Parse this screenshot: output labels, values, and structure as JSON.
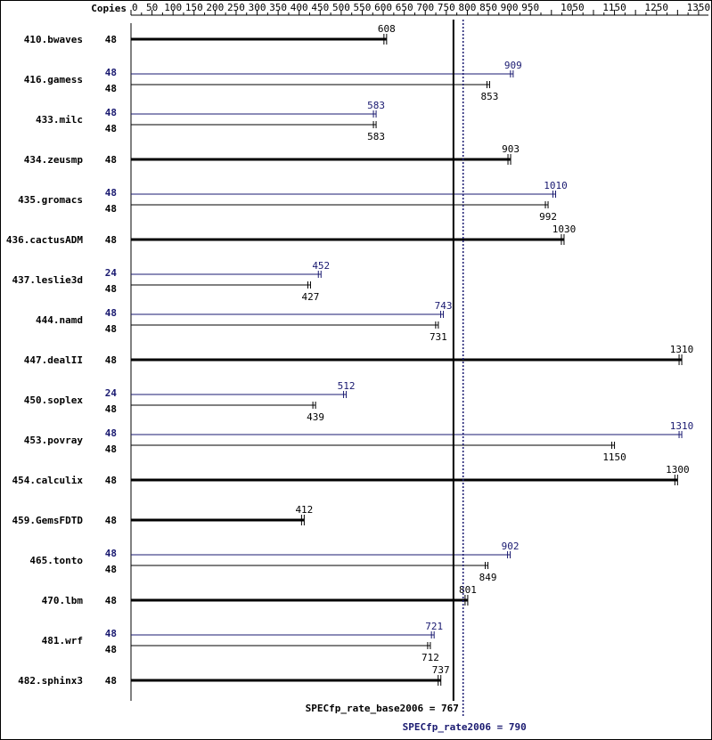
{
  "chart_data": {
    "type": "bar",
    "orientation": "horizontal",
    "copies_header": "Copies",
    "x_ticks": [
      0,
      50,
      100,
      150,
      200,
      250,
      300,
      350,
      400,
      450,
      500,
      550,
      600,
      650,
      700,
      750,
      800,
      850,
      900,
      950,
      1050,
      1150,
      1250,
      1350
    ],
    "xlim": [
      0,
      1350
    ],
    "colors": {
      "base": "#000000",
      "peak": "#191970"
    },
    "benchmarks": [
      {
        "name": "410.bwaves",
        "single": {
          "copies": "48",
          "value": 608,
          "label": "608"
        }
      },
      {
        "name": "416.gamess",
        "peak": {
          "copies": "48",
          "value": 909,
          "label": "909"
        },
        "base": {
          "copies": "48",
          "value": 853,
          "label": "853"
        }
      },
      {
        "name": "433.milc",
        "peak": {
          "copies": "48",
          "value": 583,
          "label": "583"
        },
        "base": {
          "copies": "48",
          "value": 583,
          "label": "583"
        }
      },
      {
        "name": "434.zeusmp",
        "single": {
          "copies": "48",
          "value": 903,
          "label": "903"
        }
      },
      {
        "name": "435.gromacs",
        "peak": {
          "copies": "48",
          "value": 1010,
          "label": "1010"
        },
        "base": {
          "copies": "48",
          "value": 992,
          "label": "992"
        }
      },
      {
        "name": "436.cactusADM",
        "single": {
          "copies": "48",
          "value": 1030,
          "label": "1030"
        }
      },
      {
        "name": "437.leslie3d",
        "peak": {
          "copies": "24",
          "value": 452,
          "label": "452"
        },
        "base": {
          "copies": "48",
          "value": 427,
          "label": "427"
        }
      },
      {
        "name": "444.namd",
        "peak": {
          "copies": "48",
          "value": 743,
          "label": "743"
        },
        "base": {
          "copies": "48",
          "value": 731,
          "label": "731"
        }
      },
      {
        "name": "447.dealII",
        "single": {
          "copies": "48",
          "value": 1310,
          "label": "1310"
        }
      },
      {
        "name": "450.soplex",
        "peak": {
          "copies": "24",
          "value": 512,
          "label": "512"
        },
        "base": {
          "copies": "48",
          "value": 439,
          "label": "439"
        }
      },
      {
        "name": "453.povray",
        "peak": {
          "copies": "48",
          "value": 1310,
          "label": "1310"
        },
        "base": {
          "copies": "48",
          "value": 1150,
          "label": "1150"
        }
      },
      {
        "name": "454.calculix",
        "single": {
          "copies": "48",
          "value": 1300,
          "label": "1300"
        }
      },
      {
        "name": "459.GemsFDTD",
        "single": {
          "copies": "48",
          "value": 412,
          "label": "412"
        }
      },
      {
        "name": "465.tonto",
        "peak": {
          "copies": "48",
          "value": 902,
          "label": "902"
        },
        "base": {
          "copies": "48",
          "value": 849,
          "label": "849"
        }
      },
      {
        "name": "470.lbm",
        "single": {
          "copies": "48",
          "value": 801,
          "label": "801"
        }
      },
      {
        "name": "481.wrf",
        "peak": {
          "copies": "48",
          "value": 721,
          "label": "721"
        },
        "base": {
          "copies": "48",
          "value": 712,
          "label": "712"
        }
      },
      {
        "name": "482.sphinx3",
        "single": {
          "copies": "48",
          "value": 737,
          "label": "737"
        }
      }
    ],
    "reference_lines": {
      "base": {
        "value": 767,
        "label": "SPECfp_rate_base2006 = 767"
      },
      "peak": {
        "value": 790,
        "label": "SPECfp_rate2006 = 790"
      }
    }
  }
}
